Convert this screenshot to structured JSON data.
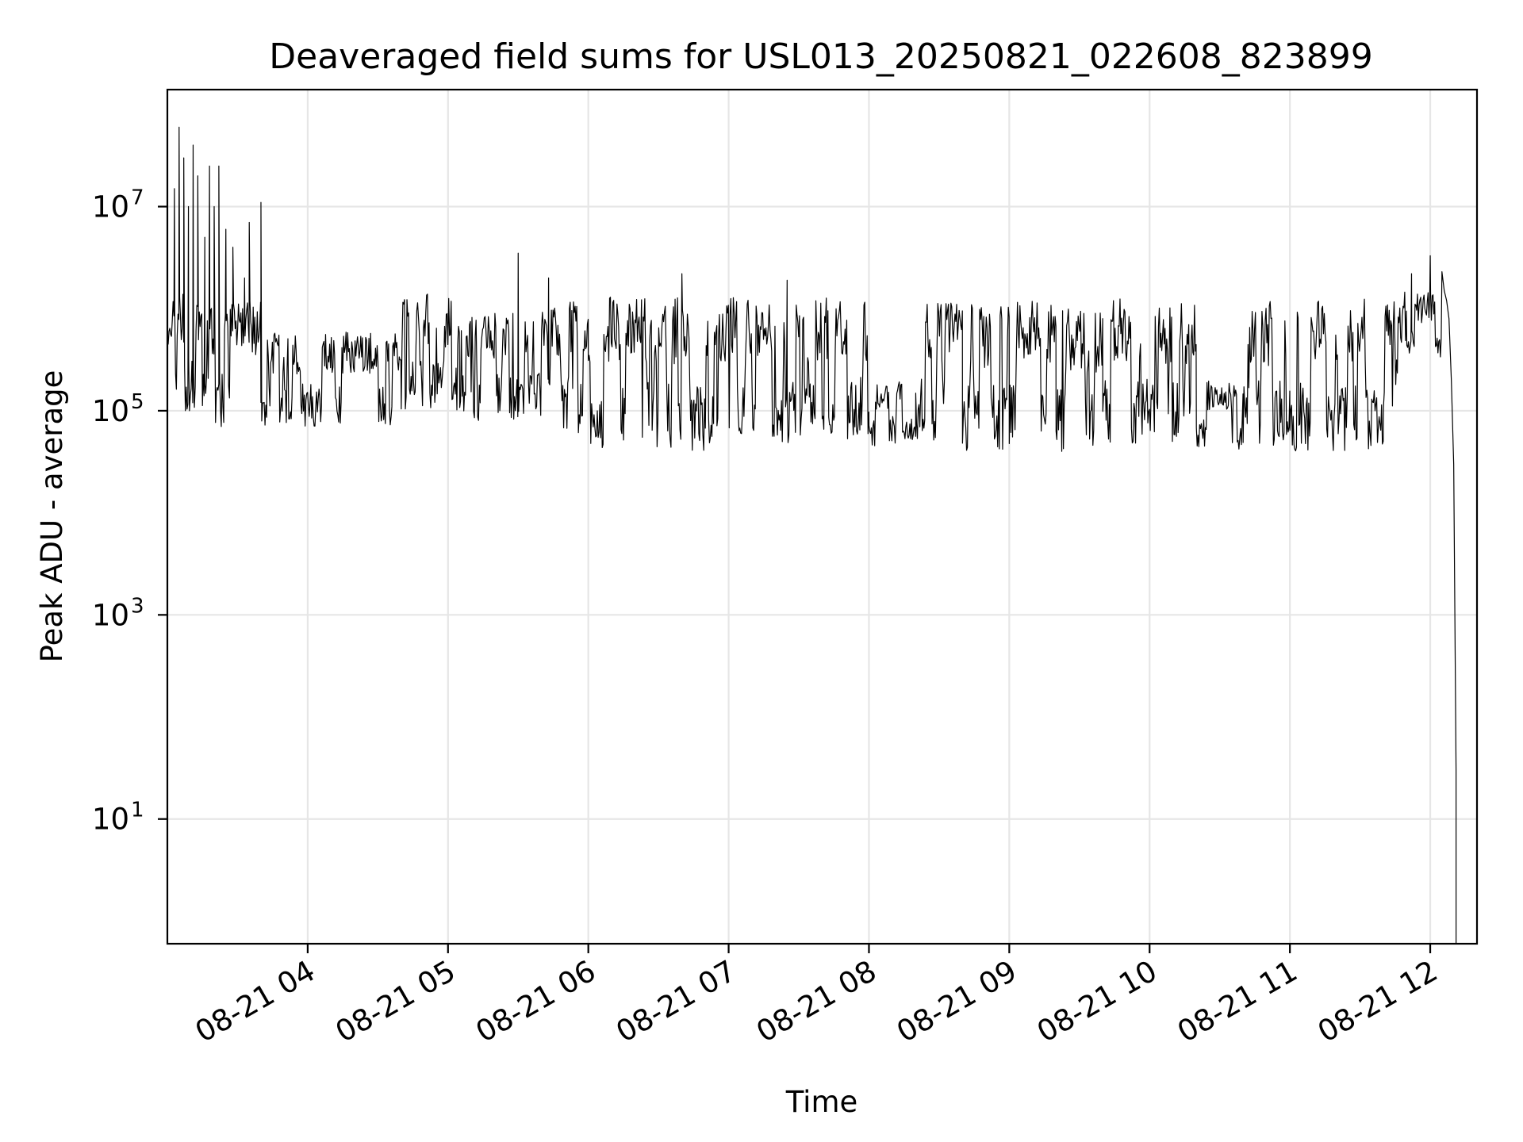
{
  "chart_data": {
    "type": "line",
    "title": "Deaveraged field sums for USL013_20250821_022608_823899",
    "xlabel": "Time",
    "ylabel": "Peak ADU - average",
    "yscale": "log",
    "ylim": [
      0.6,
      140000000
    ],
    "xlim": [
      "2025-08-21 03:00",
      "2025-08-21 12:20"
    ],
    "grid": true,
    "x_ticks": [
      {
        "time": "2025-08-21 04:00",
        "label": "08-21 04"
      },
      {
        "time": "2025-08-21 05:00",
        "label": "08-21 05"
      },
      {
        "time": "2025-08-21 06:00",
        "label": "08-21 06"
      },
      {
        "time": "2025-08-21 07:00",
        "label": "08-21 07"
      },
      {
        "time": "2025-08-21 08:00",
        "label": "08-21 08"
      },
      {
        "time": "2025-08-21 09:00",
        "label": "08-21 09"
      },
      {
        "time": "2025-08-21 10:00",
        "label": "08-21 10"
      },
      {
        "time": "2025-08-21 11:00",
        "label": "08-21 11"
      },
      {
        "time": "2025-08-21 12:00",
        "label": "08-21 12"
      }
    ],
    "y_ticks": [
      {
        "value": 10,
        "base": "10",
        "exp": "1"
      },
      {
        "value": 1000,
        "base": "10",
        "exp": "3"
      },
      {
        "value": 100000,
        "base": "10",
        "exp": "5"
      },
      {
        "value": 10000000,
        "base": "10",
        "exp": "7"
      }
    ],
    "series": [
      {
        "color": "#000000",
        "segments": [
          {
            "start": "2025-08-21 03:00",
            "end": "2025-08-21 03:15",
            "low": 100000,
            "high": 1500000
          },
          {
            "start": "2025-08-21 03:15",
            "end": "2025-08-21 03:40",
            "low": 70000,
            "high": 1200000
          },
          {
            "start": "2025-08-21 03:40",
            "end": "2025-08-21 04:40",
            "low": 70000,
            "high": 600000
          },
          {
            "start": "2025-08-21 04:40",
            "end": "2025-08-21 05:05",
            "low": 90000,
            "high": 1400000
          },
          {
            "start": "2025-08-21 05:05",
            "end": "2025-08-21 05:40",
            "low": 80000,
            "high": 900000
          },
          {
            "start": "2025-08-21 05:40",
            "end": "2025-08-21 06:00",
            "low": 60000,
            "high": 1200000
          },
          {
            "start": "2025-08-21 06:00",
            "end": "2025-08-21 06:35",
            "low": 40000,
            "high": 1300000
          },
          {
            "start": "2025-08-21 06:35",
            "end": "2025-08-21 06:55",
            "low": 40000,
            "high": 1300000
          },
          {
            "start": "2025-08-21 06:55",
            "end": "2025-08-21 07:10",
            "low": 50000,
            "high": 1300000
          },
          {
            "start": "2025-08-21 07:10",
            "end": "2025-08-21 07:40",
            "low": 45000,
            "high": 1200000
          },
          {
            "start": "2025-08-21 07:40",
            "end": "2025-08-21 08:00",
            "low": 50000,
            "high": 1300000
          },
          {
            "start": "2025-08-21 08:00",
            "end": "2025-08-21 08:20",
            "low": 45000,
            "high": 200000
          },
          {
            "start": "2025-08-21 08:20",
            "end": "2025-08-21 08:40",
            "low": 50000,
            "high": 1200000
          },
          {
            "start": "2025-08-21 08:40",
            "end": "2025-08-21 09:00",
            "low": 40000,
            "high": 1200000
          },
          {
            "start": "2025-08-21 09:00",
            "end": "2025-08-21 09:20",
            "low": 45000,
            "high": 1300000
          },
          {
            "start": "2025-08-21 09:20",
            "end": "2025-08-21 09:40",
            "low": 40000,
            "high": 1000000
          },
          {
            "start": "2025-08-21 09:40",
            "end": "2025-08-21 10:20",
            "low": 45000,
            "high": 1300000
          },
          {
            "start": "2025-08-21 10:20",
            "end": "2025-08-21 10:40",
            "low": 40000,
            "high": 200000
          },
          {
            "start": "2025-08-21 10:40",
            "end": "2025-08-21 11:00",
            "low": 45000,
            "high": 1200000
          },
          {
            "start": "2025-08-21 11:00",
            "end": "2025-08-21 11:40",
            "low": 40000,
            "high": 1300000
          },
          {
            "start": "2025-08-21 11:40",
            "end": "2025-08-21 11:50",
            "low": 100000,
            "high": 1500000
          },
          {
            "start": "2025-08-21 11:50",
            "end": "2025-08-21 12:05",
            "low": 300000,
            "high": 1500000
          }
        ],
        "spikes": [
          {
            "time": "2025-08-21 03:03",
            "value": 15000000
          },
          {
            "time": "2025-08-21 03:05",
            "value": 60000000
          },
          {
            "time": "2025-08-21 03:07",
            "value": 30000000
          },
          {
            "time": "2025-08-21 03:09",
            "value": 10000000
          },
          {
            "time": "2025-08-21 03:11",
            "value": 40000000
          },
          {
            "time": "2025-08-21 03:13",
            "value": 20000000
          },
          {
            "time": "2025-08-21 03:16",
            "value": 5000000
          },
          {
            "time": "2025-08-21 03:18",
            "value": 25000000
          },
          {
            "time": "2025-08-21 03:20",
            "value": 10000000
          },
          {
            "time": "2025-08-21 03:22",
            "value": 25000000
          },
          {
            "time": "2025-08-21 03:25",
            "value": 6000000
          },
          {
            "time": "2025-08-21 03:28",
            "value": 4000000
          },
          {
            "time": "2025-08-21 03:33",
            "value": 2000000
          },
          {
            "time": "2025-08-21 03:35",
            "value": 7000000
          },
          {
            "time": "2025-08-21 03:40",
            "value": 11000000
          },
          {
            "time": "2025-08-21 05:30",
            "value": 3500000
          },
          {
            "time": "2025-08-21 05:43",
            "value": 2000000
          },
          {
            "time": "2025-08-21 06:40",
            "value": 2200000
          },
          {
            "time": "2025-08-21 07:25",
            "value": 1900000
          },
          {
            "time": "2025-08-21 11:52",
            "value": 2200000
          },
          {
            "time": "2025-08-21 12:00",
            "value": 3300000
          },
          {
            "time": "2025-08-21 12:05",
            "value": 2300000
          }
        ],
        "tail": [
          {
            "time": "2025-08-21 12:06",
            "value": 1500000
          },
          {
            "time": "2025-08-21 12:07",
            "value": 1200000
          },
          {
            "time": "2025-08-21 12:08",
            "value": 800000
          },
          {
            "time": "2025-08-21 12:09",
            "value": 200000
          },
          {
            "time": "2025-08-21 12:10",
            "value": 30000
          },
          {
            "time": "2025-08-21 12:11",
            "value": 30
          },
          {
            "time": "2025-08-21 12:11",
            "value": 0.6
          }
        ]
      }
    ]
  }
}
